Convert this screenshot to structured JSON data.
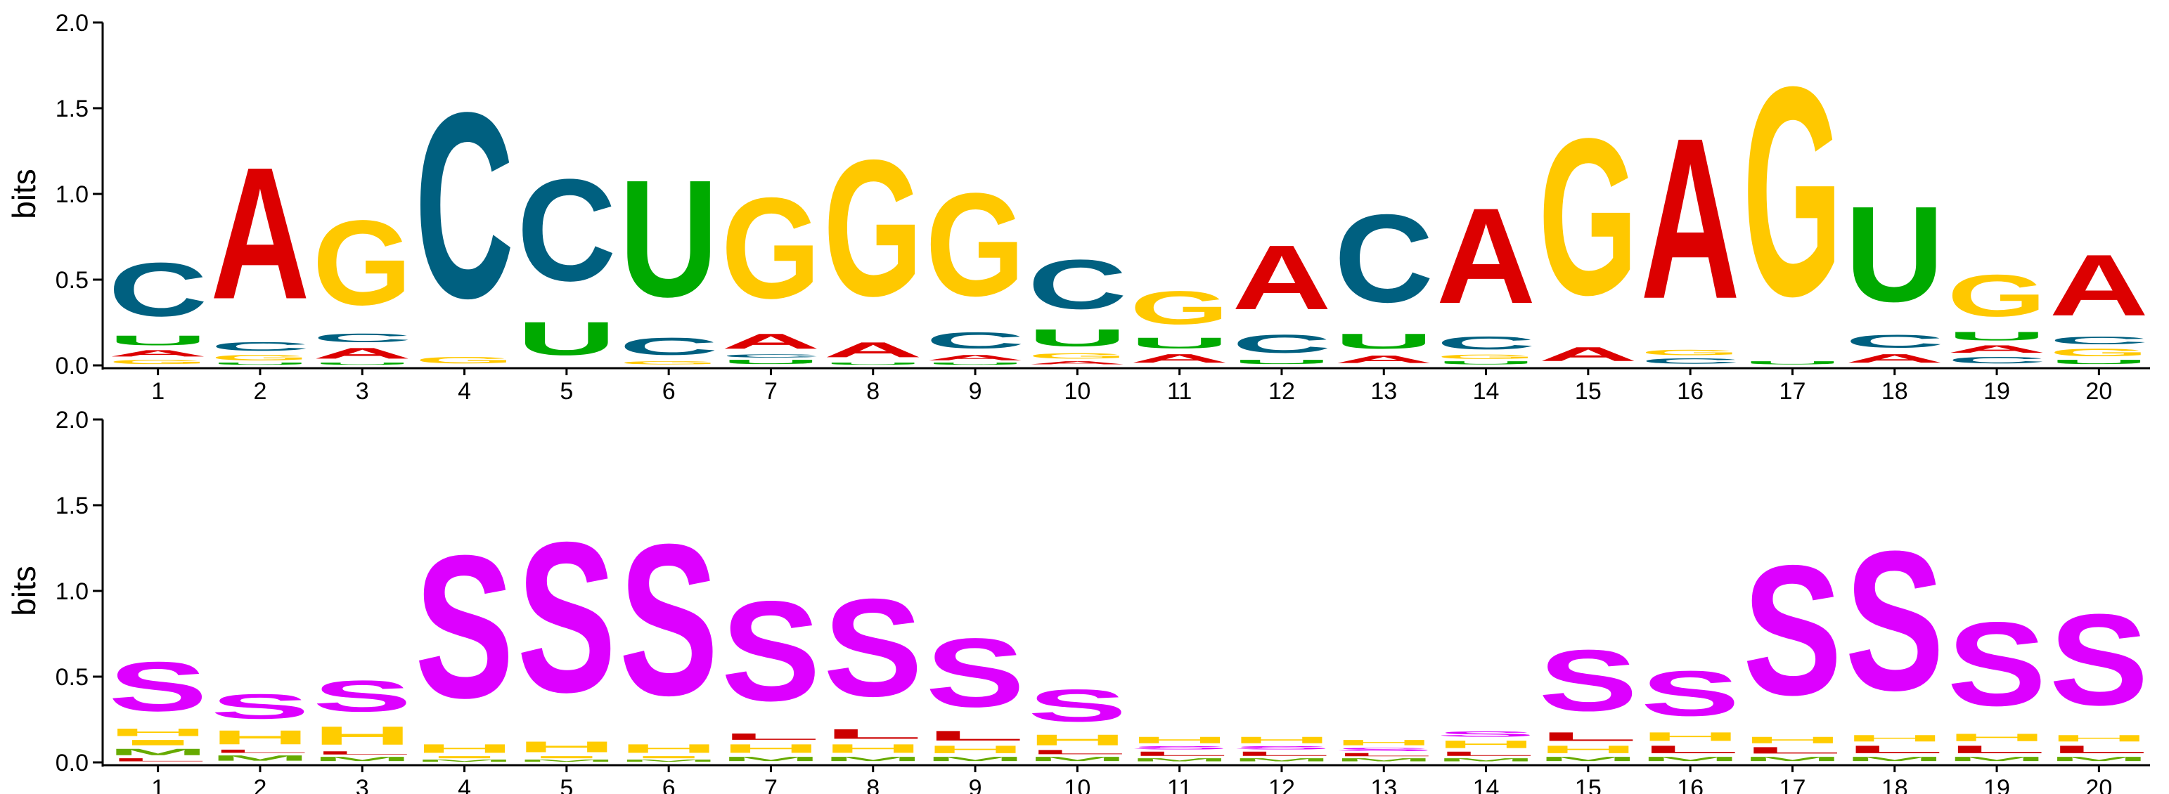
{
  "chart_data": [
    {
      "type": "sequence-logo",
      "alphabet": "RNA nucleotides",
      "ylabel": "bits",
      "ylim": [
        0,
        2.0
      ],
      "yticks": [
        "0.0",
        "0.5",
        "1.0",
        "1.5",
        "2.0"
      ],
      "positions": [
        "1",
        "2",
        "3",
        "4",
        "5",
        "6",
        "7",
        "8",
        "9",
        "10",
        "11",
        "12",
        "13",
        "14",
        "15",
        "16",
        "17",
        "18",
        "19",
        "20"
      ],
      "colors": {
        "A": "#dc0000",
        "C": "#006080",
        "G": "#ffc800",
        "U": "#00aa00"
      },
      "stacks": [
        [
          {
            "l": "G",
            "v": 0.04
          },
          {
            "l": "A",
            "v": 0.06
          },
          {
            "l": "U",
            "v": 0.09
          },
          {
            "l": "C",
            "v": 0.5
          }
        ],
        [
          {
            "l": "U",
            "v": 0.02
          },
          {
            "l": "G",
            "v": 0.05
          },
          {
            "l": "C",
            "v": 0.08
          },
          {
            "l": "A",
            "v": 1.23
          }
        ],
        [
          {
            "l": "U",
            "v": 0.02
          },
          {
            "l": "A",
            "v": 0.1
          },
          {
            "l": "C",
            "v": 0.08
          },
          {
            "l": "G",
            "v": 0.79
          }
        ],
        [
          {
            "l": "G",
            "v": 0.06
          },
          {
            "l": "C",
            "v": 1.73
          }
        ],
        [
          {
            "l": "U",
            "v": 0.31
          },
          {
            "l": "C",
            "v": 0.95
          }
        ],
        [
          {
            "l": "G",
            "v": 0.03
          },
          {
            "l": "C",
            "v": 0.16
          },
          {
            "l": "U",
            "v": 1.09
          }
        ],
        [
          {
            "l": "U",
            "v": 0.04
          },
          {
            "l": "C",
            "v": 0.03
          },
          {
            "l": "A",
            "v": 0.14
          },
          {
            "l": "G",
            "v": 0.94
          }
        ],
        [
          {
            "l": "U",
            "v": 0.02
          },
          {
            "l": "A",
            "v": 0.14
          },
          {
            "l": "G",
            "v": 1.27
          }
        ],
        [
          {
            "l": "U",
            "v": 0.02
          },
          {
            "l": "A",
            "v": 0.05
          },
          {
            "l": "C",
            "v": 0.15
          },
          {
            "l": "G",
            "v": 0.96
          }
        ],
        [
          {
            "l": "A",
            "v": 0.03
          },
          {
            "l": "G",
            "v": 0.05
          },
          {
            "l": "U",
            "v": 0.16
          },
          {
            "l": "C",
            "v": 0.46
          }
        ],
        [
          {
            "l": "A",
            "v": 0.08
          },
          {
            "l": "U",
            "v": 0.1
          },
          {
            "l": "G",
            "v": 0.31
          }
        ],
        [
          {
            "l": "U",
            "v": 0.04
          },
          {
            "l": "C",
            "v": 0.17
          },
          {
            "l": "A",
            "v": 0.6
          }
        ],
        [
          {
            "l": "A",
            "v": 0.07
          },
          {
            "l": "U",
            "v": 0.14
          },
          {
            "l": "C",
            "v": 0.82
          }
        ],
        [
          {
            "l": "U",
            "v": 0.03
          },
          {
            "l": "G",
            "v": 0.04
          },
          {
            "l": "C",
            "v": 0.12
          },
          {
            "l": "A",
            "v": 0.89
          }
        ],
        [
          {
            "l": "A",
            "v": 0.13
          },
          {
            "l": "G",
            "v": 1.46
          }
        ],
        [
          {
            "l": "C",
            "v": 0.05
          },
          {
            "l": "G",
            "v": 0.05
          },
          {
            "l": "A",
            "v": 1.5
          }
        ],
        [
          {
            "l": "U",
            "v": 0.03
          },
          {
            "l": "G",
            "v": 1.95
          }
        ],
        [
          {
            "l": "A",
            "v": 0.08
          },
          {
            "l": "C",
            "v": 0.12
          },
          {
            "l": "U",
            "v": 0.89
          }
        ],
        [
          {
            "l": "C",
            "v": 0.06
          },
          {
            "l": "A",
            "v": 0.07
          },
          {
            "l": "U",
            "v": 0.08
          },
          {
            "l": "G",
            "v": 0.39
          }
        ],
        [
          {
            "l": "U",
            "v": 0.04
          },
          {
            "l": "G",
            "v": 0.07
          },
          {
            "l": "C",
            "v": 0.07
          },
          {
            "l": "A",
            "v": 0.57
          }
        ]
      ]
    },
    {
      "type": "sequence-logo",
      "alphabet": "structure",
      "ylabel": "bits",
      "ylim": [
        0,
        2.0
      ],
      "yticks": [
        "0.0",
        "0.5",
        "1.0",
        "1.5",
        "2.0"
      ],
      "positions": [
        "1",
        "2",
        "3",
        "4",
        "5",
        "6",
        "7",
        "8",
        "9",
        "10",
        "11",
        "12",
        "13",
        "14",
        "15",
        "16",
        "17",
        "18",
        "19",
        "20"
      ],
      "colors": {
        "S": "#dd00ff",
        "H": "#ffcc00",
        "I": "#ffcc00",
        "M": "#66aa00",
        "L": "#cc0000"
      },
      "stacks": [
        [
          {
            "l": "L",
            "v": 0.03
          },
          {
            "l": "M",
            "v": 0.06
          },
          {
            "l": "I",
            "v": 0.05
          },
          {
            "l": "H",
            "v": 0.07
          },
          {
            "l": "S",
            "v": 0.46
          }
        ],
        [
          {
            "l": "M",
            "v": 0.05
          },
          {
            "l": "L",
            "v": 0.03
          },
          {
            "l": "H",
            "v": 0.13
          },
          {
            "l": "S",
            "v": 0.23
          }
        ],
        [
          {
            "l": "M",
            "v": 0.04
          },
          {
            "l": "L",
            "v": 0.03
          },
          {
            "l": "H",
            "v": 0.17
          },
          {
            "l": "S",
            "v": 0.29
          }
        ],
        [
          {
            "l": "M",
            "v": 0.02
          },
          {
            "l": "I",
            "v": 0.02
          },
          {
            "l": "H",
            "v": 0.08
          },
          {
            "l": "S",
            "v": 1.33
          }
        ],
        [
          {
            "l": "M",
            "v": 0.02
          },
          {
            "l": "I",
            "v": 0.02
          },
          {
            "l": "H",
            "v": 0.1
          },
          {
            "l": "S",
            "v": 1.4
          }
        ],
        [
          {
            "l": "M",
            "v": 0.02
          },
          {
            "l": "I",
            "v": 0.02
          },
          {
            "l": "H",
            "v": 0.08
          },
          {
            "l": "S",
            "v": 1.41
          }
        ],
        [
          {
            "l": "M",
            "v": 0.04
          },
          {
            "l": "H",
            "v": 0.08
          },
          {
            "l": "L",
            "v": 0.06
          },
          {
            "l": "S",
            "v": 0.93
          }
        ],
        [
          {
            "l": "M",
            "v": 0.04
          },
          {
            "l": "H",
            "v": 0.08
          },
          {
            "l": "L",
            "v": 0.09
          },
          {
            "l": "S",
            "v": 0.91
          }
        ],
        [
          {
            "l": "M",
            "v": 0.04
          },
          {
            "l": "H",
            "v": 0.07
          },
          {
            "l": "L",
            "v": 0.09
          },
          {
            "l": "S",
            "v": 0.64
          }
        ],
        [
          {
            "l": "M",
            "v": 0.04
          },
          {
            "l": "L",
            "v": 0.04
          },
          {
            "l": "H",
            "v": 0.1
          },
          {
            "l": "S",
            "v": 0.3
          }
        ],
        [
          {
            "l": "M",
            "v": 0.03
          },
          {
            "l": "L",
            "v": 0.04
          },
          {
            "l": "S",
            "v": 0.03
          },
          {
            "l": "H",
            "v": 0.06
          }
        ],
        [
          {
            "l": "M",
            "v": 0.03
          },
          {
            "l": "L",
            "v": 0.04
          },
          {
            "l": "S",
            "v": 0.03
          },
          {
            "l": "H",
            "v": 0.06
          }
        ],
        [
          {
            "l": "M",
            "v": 0.03
          },
          {
            "l": "L",
            "v": 0.03
          },
          {
            "l": "S",
            "v": 0.03
          },
          {
            "l": "H",
            "v": 0.05
          }
        ],
        [
          {
            "l": "M",
            "v": 0.03
          },
          {
            "l": "L",
            "v": 0.04
          },
          {
            "l": "H",
            "v": 0.07
          },
          {
            "l": "S",
            "v": 0.05
          }
        ],
        [
          {
            "l": "M",
            "v": 0.04
          },
          {
            "l": "H",
            "v": 0.07
          },
          {
            "l": "L",
            "v": 0.08
          },
          {
            "l": "S",
            "v": 0.57
          }
        ],
        [
          {
            "l": "M",
            "v": 0.04
          },
          {
            "l": "L",
            "v": 0.07
          },
          {
            "l": "H",
            "v": 0.08
          },
          {
            "l": "S",
            "v": 0.42
          }
        ],
        [
          {
            "l": "M",
            "v": 0.04
          },
          {
            "l": "L",
            "v": 0.06
          },
          {
            "l": "H",
            "v": 0.06
          },
          {
            "l": "S",
            "v": 1.21
          }
        ],
        [
          {
            "l": "M",
            "v": 0.04
          },
          {
            "l": "L",
            "v": 0.07
          },
          {
            "l": "H",
            "v": 0.06
          },
          {
            "l": "S",
            "v": 1.3
          }
        ],
        [
          {
            "l": "M",
            "v": 0.04
          },
          {
            "l": "L",
            "v": 0.07
          },
          {
            "l": "H",
            "v": 0.07
          },
          {
            "l": "S",
            "v": 0.78
          }
        ],
        [
          {
            "l": "M",
            "v": 0.04
          },
          {
            "l": "L",
            "v": 0.07
          },
          {
            "l": "H",
            "v": 0.06
          },
          {
            "l": "S",
            "v": 0.85
          }
        ]
      ]
    }
  ]
}
